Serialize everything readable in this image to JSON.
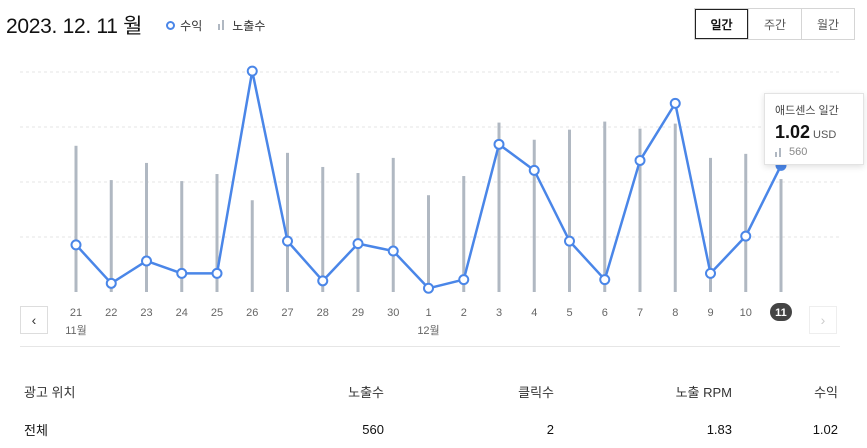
{
  "header": {
    "date_title": "2023. 12. 11 월",
    "legend_revenue": "수익",
    "legend_impressions": "노출수"
  },
  "period_tabs": [
    {
      "label": "일간",
      "active": true
    },
    {
      "label": "주간",
      "active": false
    },
    {
      "label": "월간",
      "active": false
    }
  ],
  "tooltip": {
    "title": "애드센스 일간",
    "value": "1.02",
    "unit": "USD",
    "impressions": "560"
  },
  "colors": {
    "line": "#4a86e8",
    "bar": "#b0b8c2",
    "selected_tick_bg": "#444444"
  },
  "chart_data": {
    "type": "bar+line",
    "categories": [
      "21",
      "22",
      "23",
      "24",
      "25",
      "26",
      "27",
      "28",
      "29",
      "30",
      "1",
      "2",
      "3",
      "4",
      "5",
      "6",
      "7",
      "8",
      "9",
      "10",
      "11"
    ],
    "month_labels": [
      {
        "index": 0,
        "label": "11월"
      },
      {
        "index": 10,
        "label": "12월"
      }
    ],
    "selected_index": 20,
    "series": [
      {
        "name": "노출수",
        "type": "bar",
        "values": [
          725,
          555,
          640,
          550,
          585,
          455,
          690,
          620,
          590,
          665,
          480,
          575,
          840,
          755,
          805,
          845,
          810,
          835,
          665,
          685,
          560
        ]
      },
      {
        "name": "수익",
        "type": "line",
        "values": [
          0.38,
          0.07,
          0.25,
          0.15,
          0.15,
          1.78,
          0.41,
          0.09,
          0.39,
          0.33,
          0.03,
          0.1,
          1.19,
          0.98,
          0.41,
          0.1,
          1.06,
          1.52,
          0.15,
          0.45,
          1.02
        ]
      }
    ],
    "bar_ylim": [
      0,
      1200
    ],
    "line_ylim": [
      0,
      1.95
    ],
    "grid": true
  },
  "table": {
    "headers": [
      "광고 위치",
      "노출수",
      "클릭수",
      "노출 RPM",
      "수익"
    ],
    "rows": [
      [
        "전체",
        "560",
        "2",
        "1.83",
        "1.02"
      ]
    ]
  }
}
